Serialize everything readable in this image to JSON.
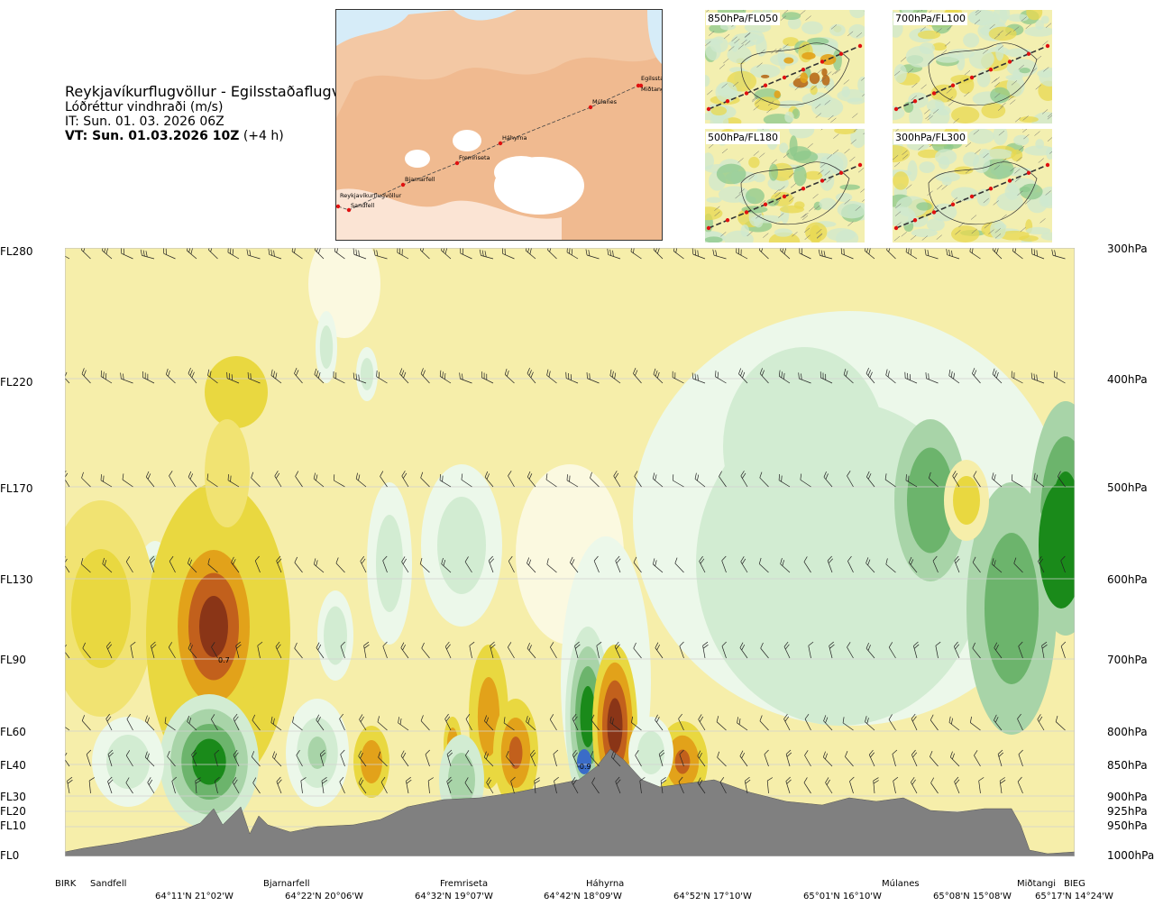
{
  "header": {
    "route": "Reykjavíkurflugvöllur - Egilsstaðaflugvöllur",
    "parameter": "Lóðréttur vindhraði (m/s)",
    "issue_time": "IT: Sun. 01. 03. 2026 06Z",
    "valid_time_bold": "VT: Sun. 01.03.2026 10Z",
    "valid_time_offset": "(+4 h)"
  },
  "route_map": {
    "points": [
      "Reykjavíkurflugvöllur",
      "Sandfell",
      "Bjarnarfell",
      "Fremriseta",
      "Háhyrna",
      "Múlanes",
      "Egilsstaðir",
      "Miðtangi"
    ]
  },
  "mini_maps": [
    {
      "label": "850hPa/FL050"
    },
    {
      "label": "700hPa/FL100"
    },
    {
      "label": "500hPa/FL180"
    },
    {
      "label": "300hPa/FL300"
    }
  ],
  "colors": {
    "updraft": [
      "#f6eeaa",
      "#e9d840",
      "#e2a21a",
      "#c2601c",
      "#8a3517"
    ],
    "downdraft": [
      "#ecf8ea",
      "#d2ecd2",
      "#a8d4a8",
      "#6cb46c",
      "#1a8a1a",
      "#3a6cc8"
    ],
    "terrain": "#808080",
    "map_water": "#d6ecf8",
    "map_land": "#f0b890",
    "route_point": "#e01010"
  },
  "chart_data": {
    "type": "heatmap",
    "title": "",
    "flight_levels": [
      "FL280",
      "FL220",
      "FL170",
      "FL130",
      "FL90",
      "FL60",
      "FL40",
      "FL30",
      "FL20",
      "FL10",
      "FL0"
    ],
    "pressure_levels": [
      "300hPa",
      "400hPa",
      "500hPa",
      "600hPa",
      "700hPa",
      "800hPa",
      "850hPa",
      "900hPa",
      "925hPa",
      "950hPa",
      "1000hPa"
    ],
    "locations": [
      "BIRK",
      "Sandfell",
      "Bjarnarfell",
      "Fremriseta",
      "Háhyrna",
      "Múlanes",
      "Miðtangi",
      "BIEG"
    ],
    "coordinates": [
      "64°11'N 21°02'W",
      "64°22'N 20°06'W",
      "64°32'N 19°07'W",
      "64°42'N 18°09'W",
      "64°52'N 17°10'W",
      "65°01'N 16°10'W",
      "65°08'N 15°08'W",
      "65°17'N 14°24'W"
    ],
    "annotations": [
      "0.7",
      "-0.9"
    ],
    "grid": true,
    "wind_barbs": true
  }
}
